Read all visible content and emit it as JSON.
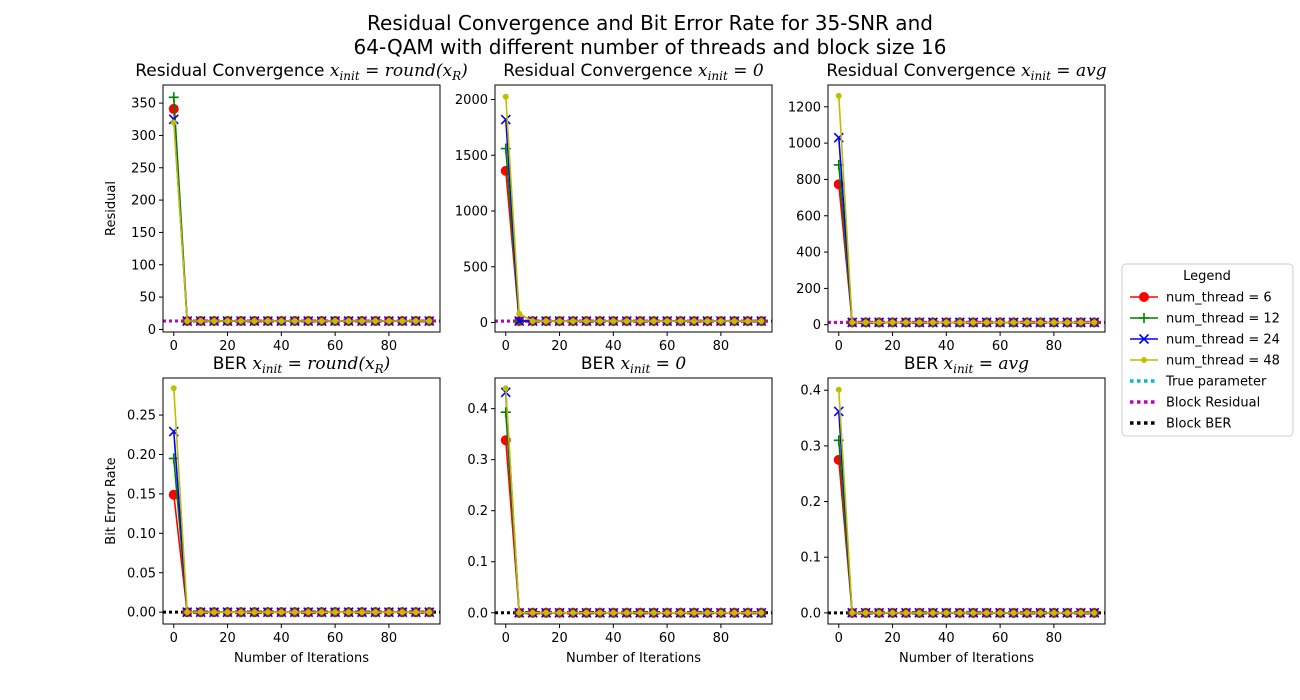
{
  "figure": {
    "title_line1": "Residual Convergence and Bit Error Rate for 35-SNR and",
    "title_line2": "64-QAM with different number of threads and block size 16"
  },
  "legend": {
    "title": "Legend",
    "entries": [
      {
        "label": "num_thread = 6",
        "color": "#ff0000",
        "marker": "circle",
        "style": "solid"
      },
      {
        "label": "num_thread = 12",
        "color": "#008000",
        "marker": "plus",
        "style": "solid"
      },
      {
        "label": "num_thread = 24",
        "color": "#0000ff",
        "marker": "x",
        "style": "solid"
      },
      {
        "label": "num_thread = 48",
        "color": "#bfbf00",
        "marker": "point",
        "style": "solid"
      },
      {
        "label": "True parameter",
        "color": "#00bfbf",
        "marker": "none",
        "style": "dotted"
      },
      {
        "label": "Block Residual",
        "color": "#bf00bf",
        "marker": "none",
        "style": "dotted"
      },
      {
        "label": "Block BER",
        "color": "#000000",
        "marker": "none",
        "style": "dotted"
      }
    ]
  },
  "chart_data": [
    {
      "type": "line",
      "title_prefix": "Residual Convergence ",
      "title_math": "x_init = round(x_R)",
      "xlabel": "",
      "ylabel": "Residual",
      "xlim": [
        -4,
        99
      ],
      "ylim": [
        -4,
        378
      ],
      "xticks": [
        0,
        20,
        40,
        60,
        80
      ],
      "yticks": [
        0,
        50,
        100,
        150,
        200,
        250,
        300,
        350
      ],
      "x": [
        0,
        5,
        10,
        15,
        20,
        25,
        30,
        35,
        40,
        45,
        50,
        55,
        60,
        65,
        70,
        75,
        80,
        85,
        90,
        95
      ],
      "series": [
        {
          "name": "num_thread = 6",
          "first": 341,
          "rest": 13
        },
        {
          "name": "num_thread = 12",
          "first": 359,
          "rest": 13
        },
        {
          "name": "num_thread = 24",
          "first": 325,
          "rest": 13
        },
        {
          "name": "num_thread = 48",
          "first": 320,
          "rest": 13
        }
      ],
      "hlines": [
        {
          "name": "True parameter",
          "y": 13
        },
        {
          "name": "Block Residual",
          "y": 13
        }
      ]
    },
    {
      "type": "line",
      "title_prefix": "Residual Convergence ",
      "title_math": "x_init = 0",
      "xlabel": "",
      "ylabel": "",
      "xlim": [
        -4,
        99
      ],
      "ylim": [
        -85,
        2130
      ],
      "xticks": [
        0,
        20,
        40,
        60,
        80
      ],
      "yticks": [
        0,
        500,
        1000,
        1500,
        2000
      ],
      "x": [
        0,
        5,
        10,
        15,
        20,
        25,
        30,
        35,
        40,
        45,
        50,
        55,
        60,
        65,
        70,
        75,
        80,
        85,
        90,
        95
      ],
      "series": [
        {
          "name": "num_thread = 6",
          "first": 1360,
          "rest": 13
        },
        {
          "name": "num_thread = 12",
          "first": 1560,
          "rest": 13
        },
        {
          "name": "num_thread = 24",
          "first": 1820,
          "rest": 13
        },
        {
          "name": "num_thread = 48",
          "first": 2025,
          "second": 80,
          "rest": 13
        }
      ],
      "hlines": [
        {
          "name": "True parameter",
          "y": 13
        },
        {
          "name": "Block Residual",
          "y": 13
        }
      ]
    },
    {
      "type": "line",
      "title_prefix": "Residual Convergence ",
      "title_math": "x_init = avg",
      "xlabel": "",
      "ylabel": "",
      "xlim": [
        -4,
        99
      ],
      "ylim": [
        -40,
        1320
      ],
      "xticks": [
        0,
        20,
        40,
        60,
        80
      ],
      "yticks": [
        0,
        200,
        400,
        600,
        800,
        1000,
        1200
      ],
      "x": [
        0,
        5,
        10,
        15,
        20,
        25,
        30,
        35,
        40,
        45,
        50,
        55,
        60,
        65,
        70,
        75,
        80,
        85,
        90,
        95
      ],
      "series": [
        {
          "name": "num_thread = 6",
          "first": 773,
          "rest": 13
        },
        {
          "name": "num_thread = 12",
          "first": 880,
          "rest": 13
        },
        {
          "name": "num_thread = 24",
          "first": 1030,
          "rest": 13
        },
        {
          "name": "num_thread = 48",
          "first": 1260,
          "rest": 13
        }
      ],
      "hlines": [
        {
          "name": "True parameter",
          "y": 13
        },
        {
          "name": "Block Residual",
          "y": 13
        }
      ]
    },
    {
      "type": "line",
      "title_prefix": "BER ",
      "title_math": "x_init = round(x_R)",
      "xlabel": "Number of Iterations",
      "ylabel": "Bit Error Rate",
      "xlim": [
        -4,
        99
      ],
      "ylim": [
        -0.015,
        0.297
      ],
      "xticks": [
        0,
        20,
        40,
        60,
        80
      ],
      "yticks": [
        0.0,
        0.05,
        0.1,
        0.15,
        0.2,
        0.25
      ],
      "ytick_labels": [
        "0.00",
        "0.05",
        "0.10",
        "0.15",
        "0.20",
        "0.25"
      ],
      "x": [
        0,
        5,
        10,
        15,
        20,
        25,
        30,
        35,
        40,
        45,
        50,
        55,
        60,
        65,
        70,
        75,
        80,
        85,
        90,
        95
      ],
      "series": [
        {
          "name": "num_thread = 6",
          "first": 0.149,
          "rest": 0
        },
        {
          "name": "num_thread = 12",
          "first": 0.195,
          "rest": 0
        },
        {
          "name": "num_thread = 24",
          "first": 0.229,
          "rest": 0
        },
        {
          "name": "num_thread = 48",
          "first": 0.284,
          "rest": 0
        }
      ],
      "hlines": [
        {
          "name": "Block BER",
          "y": 0
        }
      ]
    },
    {
      "type": "line",
      "title_prefix": "BER ",
      "title_math": "x_init = 0",
      "xlabel": "Number of Iterations",
      "ylabel": "",
      "xlim": [
        -4,
        99
      ],
      "ylim": [
        -0.022,
        0.46
      ],
      "xticks": [
        0,
        20,
        40,
        60,
        80
      ],
      "yticks": [
        0.0,
        0.1,
        0.2,
        0.3,
        0.4
      ],
      "ytick_labels": [
        "0.0",
        "0.1",
        "0.2",
        "0.3",
        "0.4"
      ],
      "x": [
        0,
        5,
        10,
        15,
        20,
        25,
        30,
        35,
        40,
        45,
        50,
        55,
        60,
        65,
        70,
        75,
        80,
        85,
        90,
        95
      ],
      "series": [
        {
          "name": "num_thread = 6",
          "first": 0.338,
          "rest": 0
        },
        {
          "name": "num_thread = 12",
          "first": 0.393,
          "rest": 0
        },
        {
          "name": "num_thread = 24",
          "first": 0.432,
          "rest": 0
        },
        {
          "name": "num_thread = 48",
          "first": 0.44,
          "rest": 0
        }
      ],
      "hlines": [
        {
          "name": "Block BER",
          "y": 0
        }
      ]
    },
    {
      "type": "line",
      "title_prefix": "BER ",
      "title_math": "x_init = avg",
      "xlabel": "Number of Iterations",
      "ylabel": "",
      "xlim": [
        -4,
        99
      ],
      "ylim": [
        -0.02,
        0.422
      ],
      "xticks": [
        0,
        20,
        40,
        60,
        80
      ],
      "yticks": [
        0.0,
        0.1,
        0.2,
        0.3,
        0.4
      ],
      "ytick_labels": [
        "0.0",
        "0.1",
        "0.2",
        "0.3",
        "0.4"
      ],
      "x": [
        0,
        5,
        10,
        15,
        20,
        25,
        30,
        35,
        40,
        45,
        50,
        55,
        60,
        65,
        70,
        75,
        80,
        85,
        90,
        95
      ],
      "series": [
        {
          "name": "num_thread = 6",
          "first": 0.275,
          "rest": 0
        },
        {
          "name": "num_thread = 12",
          "first": 0.31,
          "rest": 0
        },
        {
          "name": "num_thread = 24",
          "first": 0.362,
          "rest": 0
        },
        {
          "name": "num_thread = 48",
          "first": 0.401,
          "rest": 0
        }
      ],
      "hlines": [
        {
          "name": "Block BER",
          "y": 0
        }
      ]
    }
  ]
}
